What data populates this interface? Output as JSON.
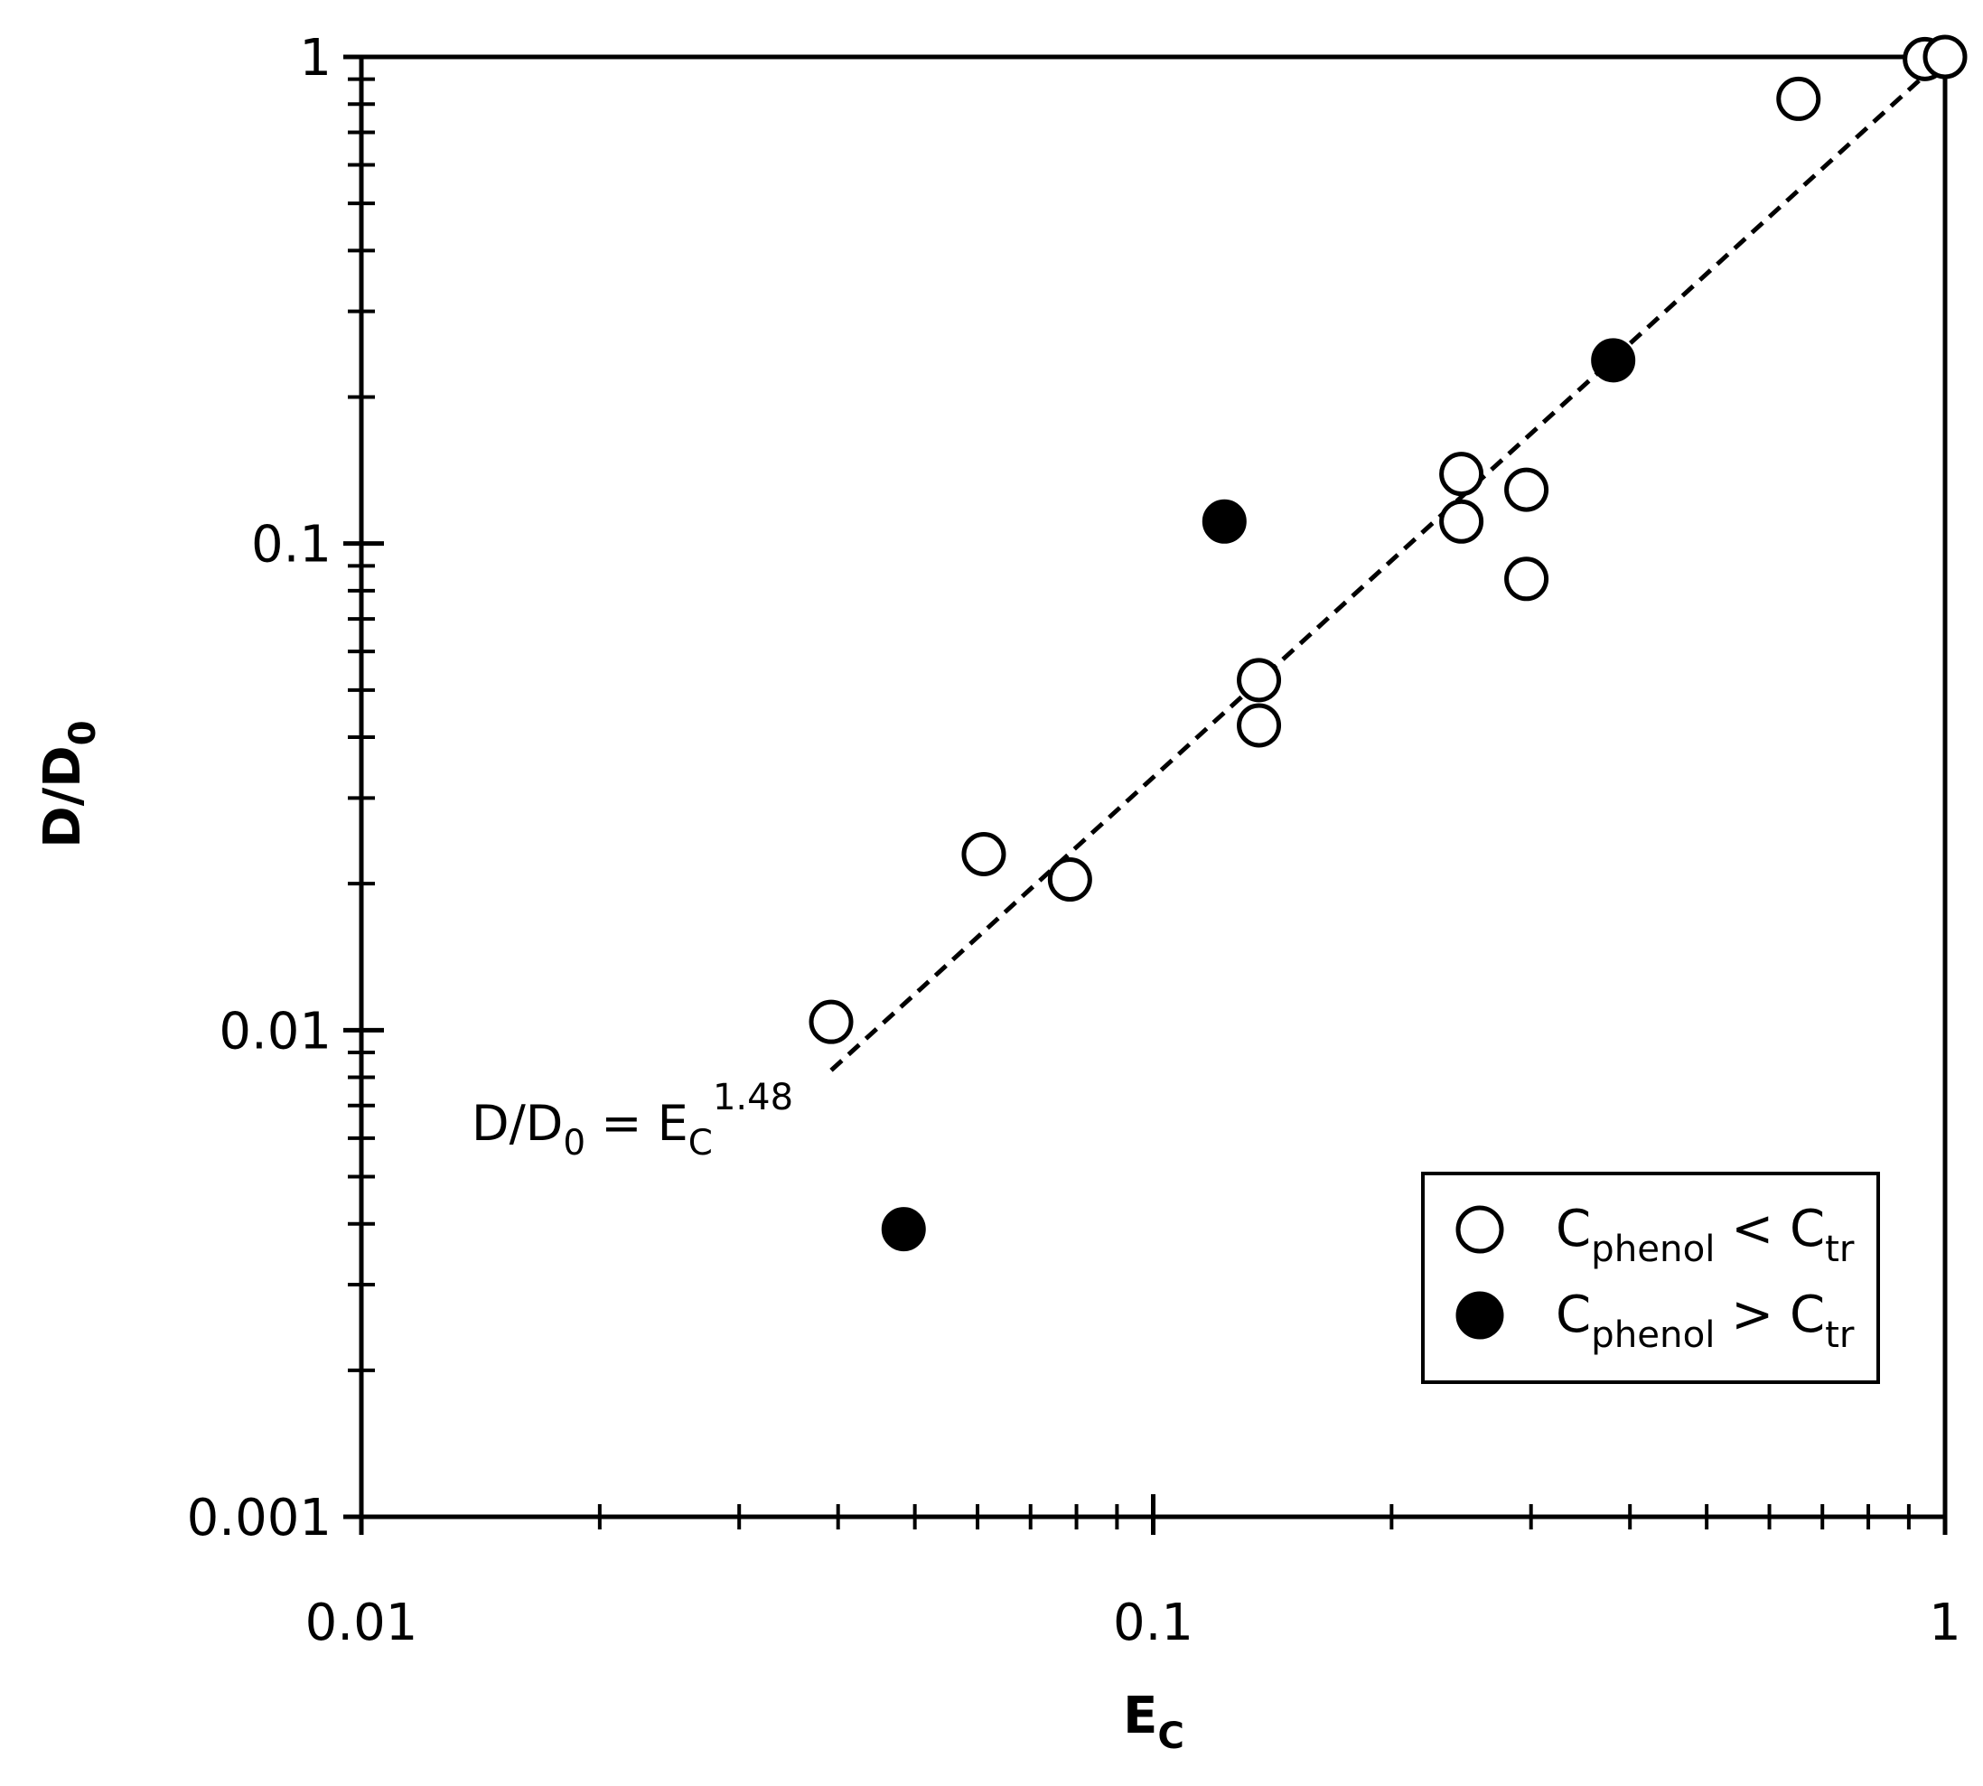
{
  "chart_data": {
    "type": "scatter",
    "xlabel": [
      "E",
      "C"
    ],
    "ylabel": [
      "D/D",
      "0"
    ],
    "xscale": "log",
    "yscale": "log",
    "xlim": [
      0.01,
      1
    ],
    "ylim": [
      0.001,
      1
    ],
    "xticks": [
      0.01,
      0.1,
      1
    ],
    "yticks": [
      0.001,
      0.01,
      0.1,
      1
    ],
    "xminorticks": [
      0.02,
      0.03,
      0.04,
      0.05,
      0.06,
      0.07,
      0.08,
      0.09,
      0.2,
      0.3,
      0.4,
      0.5,
      0.6,
      0.7,
      0.8,
      0.9
    ],
    "yminorticks": [
      0.002,
      0.003,
      0.004,
      0.005,
      0.006,
      0.007,
      0.008,
      0.009,
      0.02,
      0.03,
      0.04,
      0.05,
      0.06,
      0.07,
      0.08,
      0.09,
      0.2,
      0.3,
      0.4,
      0.5,
      0.6,
      0.7,
      0.8,
      0.9
    ],
    "series": [
      {
        "name": [
          "C",
          "phenol",
          " < C",
          "tr"
        ],
        "color": "#000000",
        "filled": false,
        "x": [
          0.943,
          1,
          0.653,
          0.245,
          0.245,
          0.296,
          0.296,
          0.136,
          0.136,
          0.0611,
          0.0785,
          0.0392
        ],
        "values": [
          0.99,
          1,
          0.82,
          0.139,
          0.111,
          0.129,
          0.0846,
          0.0524,
          0.0423,
          0.023,
          0.0204,
          0.0104
        ]
      },
      {
        "name": [
          "C",
          "phenol",
          " > C",
          "tr"
        ],
        "color": "#000000",
        "filled": true,
        "x": [
          0.381,
          0.123,
          0.0484
        ],
        "values": [
          0.238,
          0.111,
          0.0039
        ]
      }
    ],
    "fit": {
      "label": [
        "D/D",
        "0",
        " = E",
        "C"
      ],
      "exponent": "1.48",
      "style": "dashed",
      "color": "#000000",
      "x": [
        0.0392,
        1
      ],
      "values": [
        0.00827,
        1
      ]
    },
    "legend": "lower right"
  }
}
